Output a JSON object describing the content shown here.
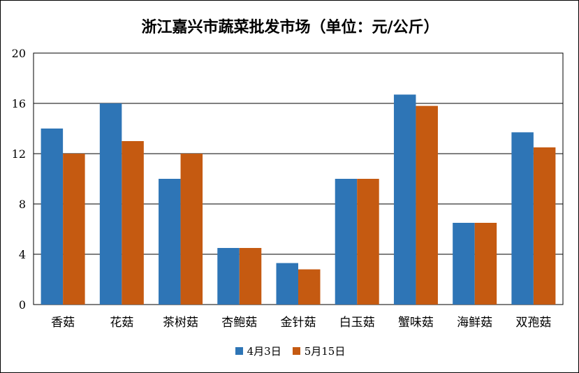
{
  "chart_data": {
    "type": "bar",
    "title": "浙江嘉兴市蔬菜批发市场（单位：元/公斤）",
    "categories": [
      "香菇",
      "花菇",
      "茶树菇",
      "杏鲍菇",
      "金针菇",
      "白玉菇",
      "蟹味菇",
      "海鲜菇",
      "双孢菇"
    ],
    "series": [
      {
        "name": "4月3日",
        "color": "#2E75B6",
        "values": [
          14,
          16,
          10,
          4.5,
          3.3,
          10,
          16.7,
          6.5,
          13.7
        ]
      },
      {
        "name": "5月15日",
        "color": "#C55A11",
        "values": [
          12,
          13,
          12,
          4.5,
          2.8,
          10,
          15.8,
          6.5,
          12.5
        ]
      }
    ],
    "ylim": [
      0,
      20
    ],
    "yticks": [
      0,
      4,
      8,
      12,
      16,
      20
    ],
    "grid": true,
    "legend": "bottom"
  }
}
